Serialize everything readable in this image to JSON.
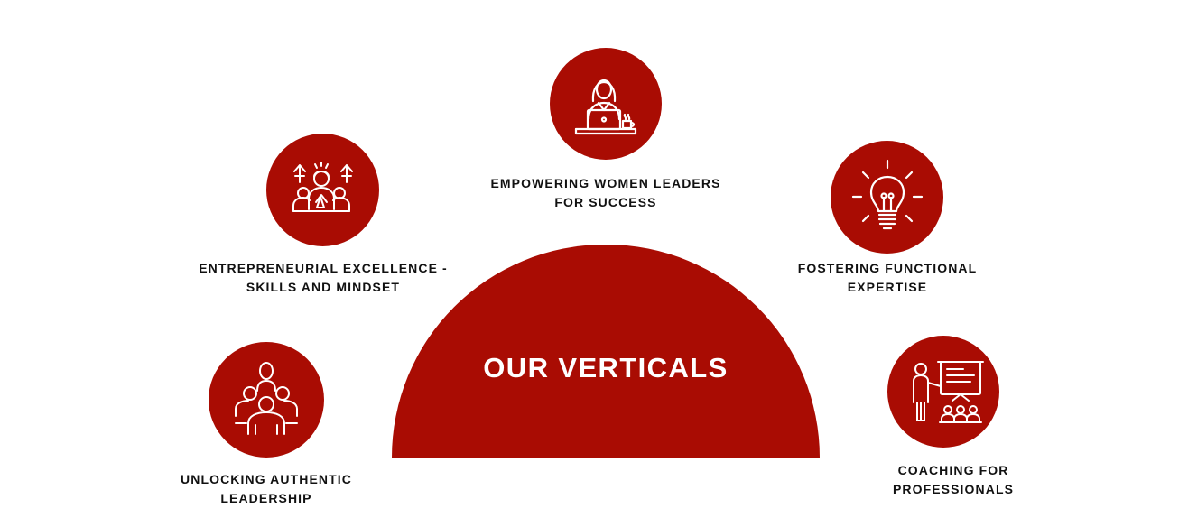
{
  "center": {
    "title": "OUR VERTICALS"
  },
  "accent_color": "#a90c03",
  "verticals": [
    {
      "icon": "woman-laptop-icon",
      "line1": "EMPOWERING WOMEN LEADERS",
      "line2": "FOR SUCCESS"
    },
    {
      "icon": "team-leader-growth-icon",
      "line1": "ENTREPRENEURIAL EXCELLENCE -",
      "line2": "SKILLS AND MINDSET"
    },
    {
      "icon": "lightbulb-icon",
      "line1": "FOSTERING FUNCTIONAL",
      "line2": "EXPERTISE"
    },
    {
      "icon": "group-people-icon",
      "line1": "UNLOCKING AUTHENTIC",
      "line2": "LEADERSHIP"
    },
    {
      "icon": "presentation-coaching-icon",
      "line1": "COACHING FOR",
      "line2": "PROFESSIONALS"
    }
  ]
}
